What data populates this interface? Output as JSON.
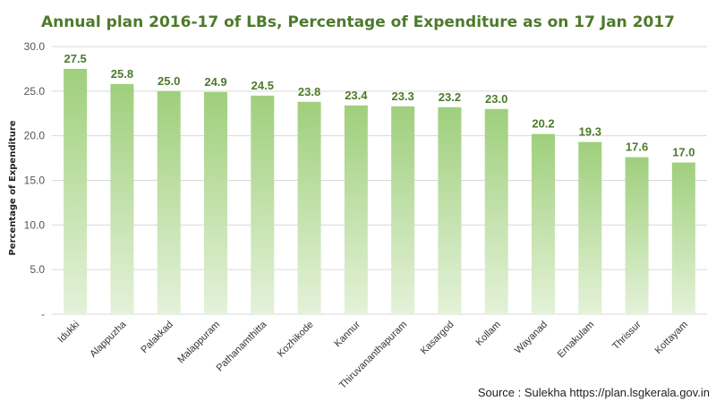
{
  "chart_data": {
    "type": "bar",
    "title": "Annual plan 2016-17 of LBs, Percentage of Expenditure as on 17 Jan 2017",
    "ylabel": "Percentage of Expenditure",
    "xlabel": "",
    "ylim": [
      0,
      30
    ],
    "yticks": [
      "-",
      "5.0",
      "10.0",
      "15.0",
      "20.0",
      "25.0",
      "30.0"
    ],
    "categories": [
      "Idukki",
      "Alappuzha",
      "Palakkad",
      "Malappuram",
      "Pathanamthitta",
      "Kozhikode",
      "Kannur",
      "Thiruvananthapuram",
      "Kasargod",
      "Kollam",
      "Wayanad",
      "Ernakulam",
      "Thrissur",
      "Kottayam"
    ],
    "values": [
      27.5,
      25.8,
      25.0,
      24.9,
      24.5,
      23.8,
      23.4,
      23.3,
      23.2,
      23.0,
      20.2,
      19.3,
      17.6,
      17.0
    ],
    "data_labels": [
      "27.5",
      "25.8",
      "25.0",
      "24.9",
      "24.5",
      "23.8",
      "23.4",
      "23.3",
      "23.2",
      "23.0",
      "20.2",
      "19.3",
      "17.6",
      "17.0"
    ],
    "grid": true,
    "colors": {
      "bar_top": "#9fcf7c",
      "bar_bottom": "#e4f2d9",
      "title": "#4e7a2b",
      "label": "#4e7a2b"
    }
  },
  "source": "Source : Sulekha https://plan.lsgkerala.gov.in"
}
